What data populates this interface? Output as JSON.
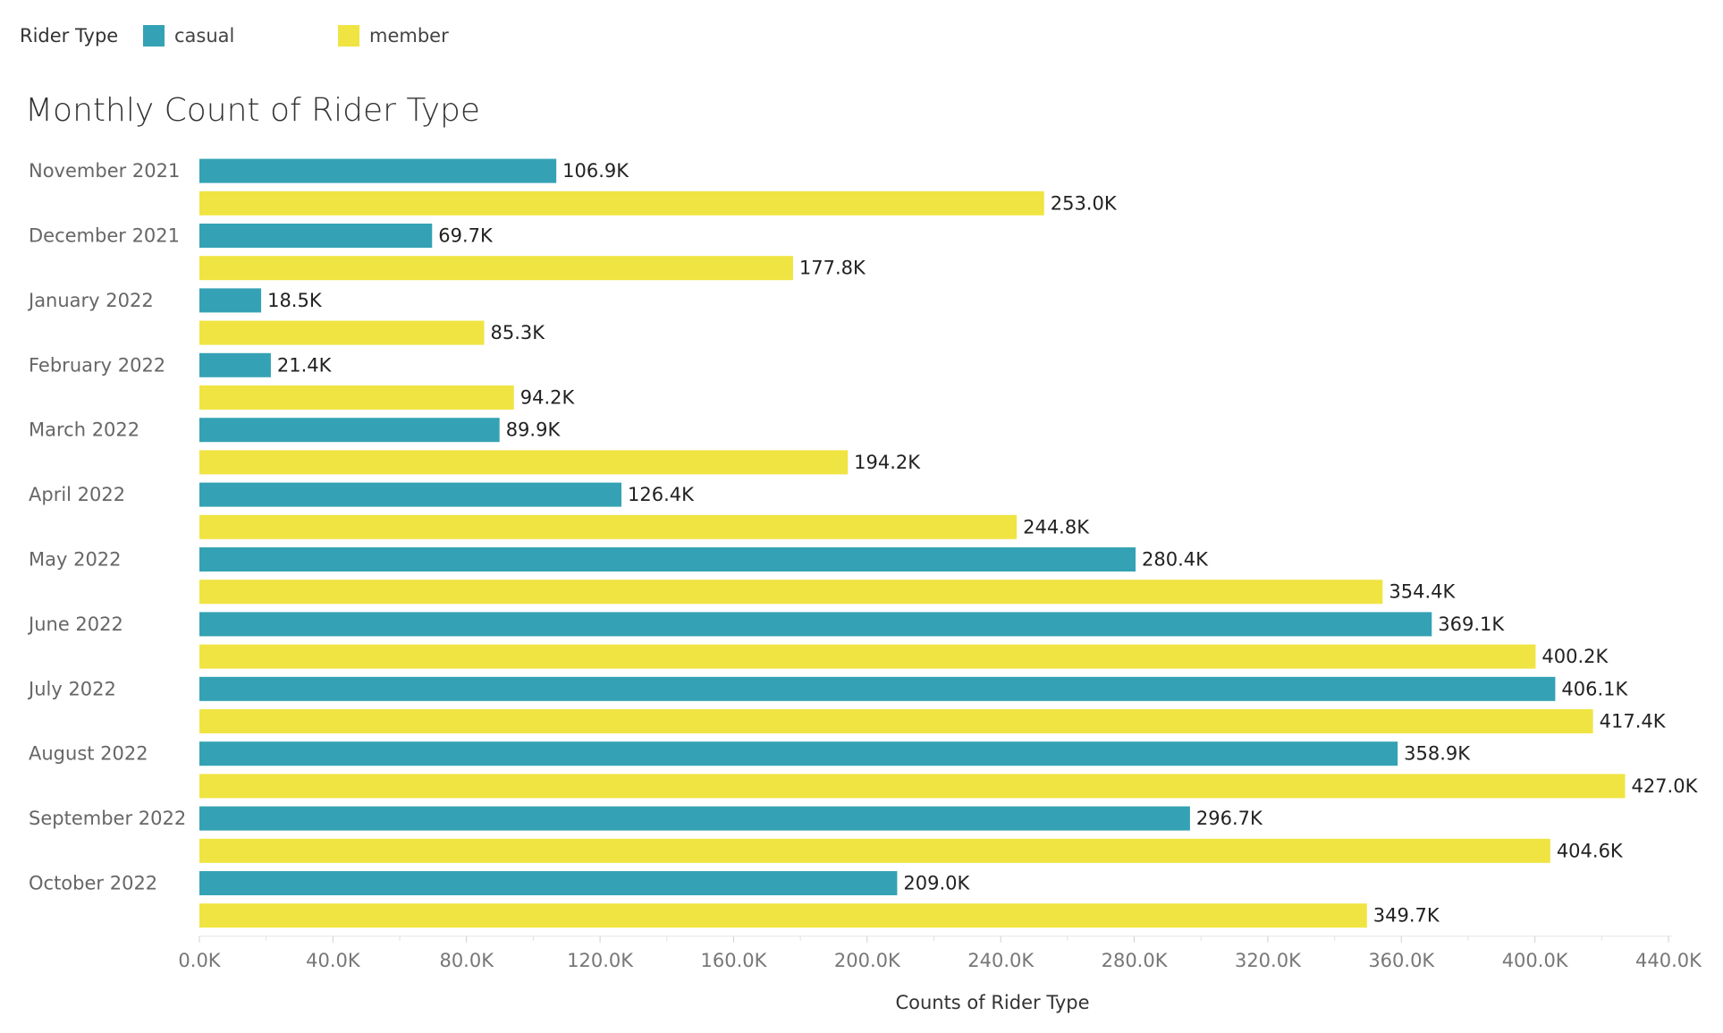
{
  "legend": {
    "title": "Rider Type",
    "items": [
      {
        "label": "casual",
        "color": "#34a2b4"
      },
      {
        "label": "member",
        "color": "#f0e442"
      }
    ]
  },
  "chart_data": {
    "type": "bar",
    "orientation": "horizontal",
    "title": "Monthly Count of Rider Type",
    "xlabel": "Counts of Rider Type",
    "ylabel": "",
    "xlim": [
      0,
      440000
    ],
    "x_ticks": [
      "0.0K",
      "40.0K",
      "80.0K",
      "120.0K",
      "160.0K",
      "200.0K",
      "240.0K",
      "280.0K",
      "320.0K",
      "360.0K",
      "400.0K",
      "440.0K"
    ],
    "grid": false,
    "legend_position": "top-left",
    "categories": [
      "November 2021",
      "December 2021",
      "January 2022",
      "February 2022",
      "March 2022",
      "April 2022",
      "May 2022",
      "June 2022",
      "July 2022",
      "August 2022",
      "September 2022",
      "October 2022"
    ],
    "series": [
      {
        "name": "casual",
        "color": "#34a2b4",
        "values": [
          106900,
          69700,
          18500,
          21400,
          89900,
          126400,
          280400,
          369100,
          406100,
          358900,
          296700,
          209000
        ],
        "labels": [
          "106.9K",
          "69.7K",
          "18.5K",
          "21.4K",
          "89.9K",
          "126.4K",
          "280.4K",
          "369.1K",
          "406.1K",
          "358.9K",
          "296.7K",
          "209.0K"
        ]
      },
      {
        "name": "member",
        "color": "#f0e442",
        "values": [
          253000,
          177800,
          85300,
          94200,
          194200,
          244800,
          354400,
          400200,
          417400,
          427000,
          404600,
          349700
        ],
        "labels": [
          "253.0K",
          "177.8K",
          "85.3K",
          "94.2K",
          "194.2K",
          "244.8K",
          "354.4K",
          "400.2K",
          "417.4K",
          "427.0K",
          "404.6K",
          "349.7K"
        ]
      }
    ]
  }
}
